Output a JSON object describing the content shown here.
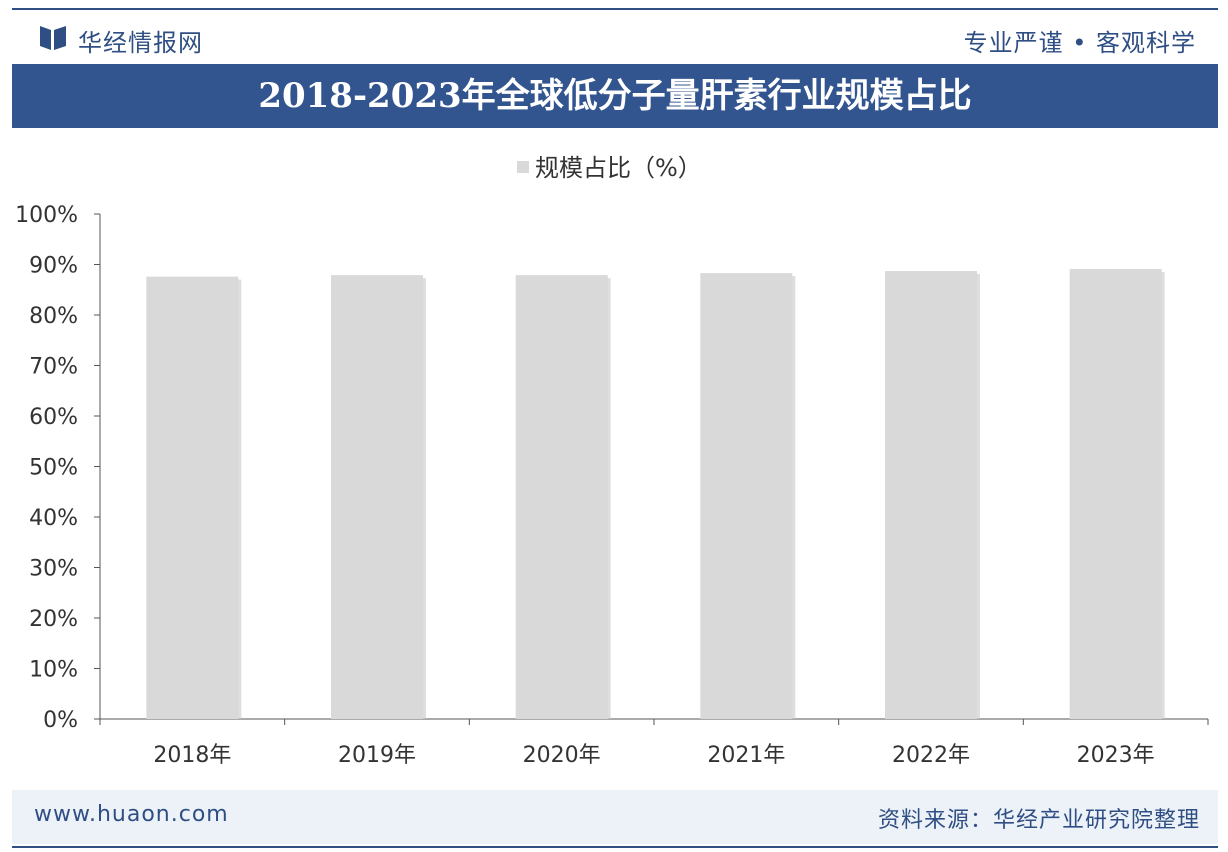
{
  "header": {
    "brand": "华经情报网",
    "slogan": "专业严谨 • 客观科学"
  },
  "title": "2018-2023年全球低分子量肝素行业规模占比",
  "footer": {
    "website": "www.huaon.com",
    "source": "资料来源：华经产业研究院整理"
  },
  "colors": {
    "brand": "#2f4f84",
    "title_bar": "#33558f",
    "bar": "#d9d9d9",
    "footer_bg": "#edf2f8"
  },
  "chart_data": {
    "type": "bar",
    "title": "2018-2023年全球低分子量肝素行业规模占比",
    "categories": [
      "2018年",
      "2019年",
      "2020年",
      "2021年",
      "2022年",
      "2023年"
    ],
    "series": [
      {
        "name": "规模占比（%）",
        "values": [
          87.6,
          87.9,
          87.9,
          88.3,
          88.7,
          89.1
        ]
      }
    ],
    "ylim": [
      0,
      100
    ],
    "yticks": [
      "0%",
      "10%",
      "20%",
      "30%",
      "40%",
      "50%",
      "60%",
      "70%",
      "80%",
      "90%",
      "100%"
    ],
    "xlabel": "",
    "ylabel": "",
    "legend_position": "top-center",
    "grid": false
  }
}
